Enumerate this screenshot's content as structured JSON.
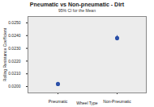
{
  "chart_data": {
    "type": "scatter",
    "title": "Pneumatic vs Non-pneumatic - Dirt",
    "subtitle": "95% CI for the Mean",
    "x_label": "Wheel Type",
    "y_label": "Rolling Resistance Coefficient",
    "categories": [
      "Pneumatic",
      "Non-Pneumatic"
    ],
    "values": [
      0.0202,
      0.0238
    ],
    "ci_lower": [
      0.0201,
      0.0236
    ],
    "ci_upper": [
      0.0203,
      0.024
    ],
    "color": "#2b50a8",
    "marker": "circle",
    "ylim": [
      0.0195,
      0.0255
    ],
    "yticks": [
      {
        "value": 0.02,
        "label": "0.0200"
      },
      {
        "value": 0.021,
        "label": "0.0210"
      },
      {
        "value": 0.022,
        "label": "0.0220"
      },
      {
        "value": 0.023,
        "label": "0.0230"
      },
      {
        "value": 0.024,
        "label": "0.0240"
      },
      {
        "value": 0.025,
        "label": "0.0250"
      }
    ],
    "grid": false
  }
}
